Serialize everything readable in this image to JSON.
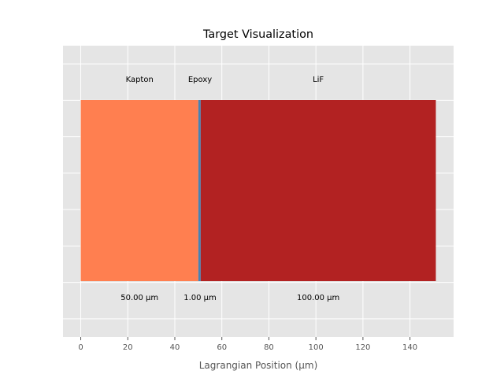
{
  "chart_data": {
    "type": "bar",
    "orientation": "horizontal-stacked",
    "title": "Target Visualization",
    "xlabel": "Lagrangian Position (µm)",
    "ylabel": "",
    "xlim": [
      -7.55,
      158.55
    ],
    "xticks": [
      0,
      20,
      40,
      60,
      80,
      100,
      120,
      140
    ],
    "xtick_labels": [
      "0",
      "20",
      "40",
      "60",
      "80",
      "100",
      "120",
      "140"
    ],
    "grid": true,
    "style": "ggplot",
    "layers": [
      {
        "name": "Kapton",
        "start": 0,
        "thickness": 50.0,
        "thickness_label": "50.00 µm",
        "color": "#ff7f50"
      },
      {
        "name": "Epoxy",
        "start": 50.0,
        "thickness": 1.0,
        "thickness_label": "1.00 µm",
        "color": "#4682b4"
      },
      {
        "name": "LiF",
        "start": 51.0,
        "thickness": 100.0,
        "thickness_label": "100.00 µm",
        "color": "#b22222"
      }
    ]
  }
}
